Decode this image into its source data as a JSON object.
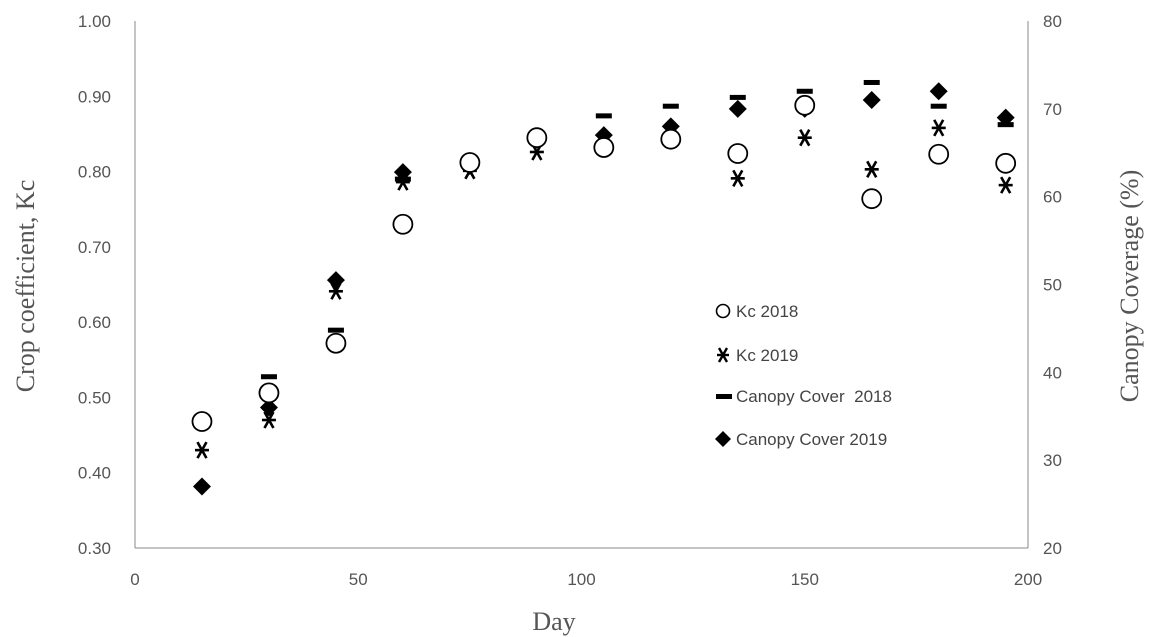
{
  "chart_data": {
    "type": "scatter",
    "title": "",
    "xlabel": "Day",
    "ylabel": "Crop coefficient, Kc",
    "y2label": "Canopy Coverage (%)",
    "xlim": [
      0,
      200
    ],
    "ylim": [
      0.3,
      1.0
    ],
    "y2lim": [
      20,
      80
    ],
    "x_ticks": [
      "0",
      "50",
      "100",
      "150",
      "200"
    ],
    "y_ticks": [
      "0.30",
      "0.40",
      "0.50",
      "0.60",
      "0.70",
      "0.80",
      "0.90",
      "1.00"
    ],
    "y2_ticks": [
      "20",
      "30",
      "40",
      "50",
      "60",
      "70",
      "80"
    ],
    "grid": false,
    "legend_position": "right-center",
    "series": [
      {
        "name": "Kc 2018",
        "axis": "left",
        "marker": "circle-open",
        "x": [
          15,
          30,
          45,
          60,
          75,
          90,
          105,
          120,
          135,
          150,
          165,
          180,
          195
        ],
        "y": [
          0.468,
          0.506,
          0.572,
          0.73,
          0.812,
          0.845,
          0.832,
          0.843,
          0.824,
          0.888,
          0.764,
          0.823,
          0.811
        ]
      },
      {
        "name": "Kc 2019",
        "axis": "left",
        "marker": "asterisk",
        "x": [
          15,
          30,
          45,
          60,
          75,
          90,
          105,
          120,
          135,
          150,
          165,
          180,
          195
        ],
        "y": [
          0.43,
          0.47,
          0.641,
          0.786,
          0.801,
          0.826,
          0.834,
          0.845,
          0.791,
          0.845,
          0.803,
          0.858,
          0.782
        ]
      },
      {
        "name": "Canopy Cover  2018",
        "axis": "right",
        "marker": "dash",
        "x": [
          30,
          45,
          60,
          75,
          90,
          105,
          120,
          135,
          150,
          165,
          180,
          195
        ],
        "y": [
          39.5,
          44.8,
          62.0,
          64.0,
          67.0,
          69.2,
          70.3,
          71.3,
          72.0,
          73.0,
          70.3,
          68.2
        ]
      },
      {
        "name": "Canopy Cover 2019",
        "axis": "right",
        "marker": "diamond",
        "x": [
          15,
          30,
          45,
          60,
          75,
          90,
          105,
          120,
          135,
          150,
          165,
          180,
          195
        ],
        "y": [
          27.0,
          36.0,
          50.5,
          62.8,
          63.5,
          66.5,
          67.0,
          68.0,
          70.0,
          70.0,
          71.0,
          72.0,
          69.0
        ]
      }
    ]
  }
}
